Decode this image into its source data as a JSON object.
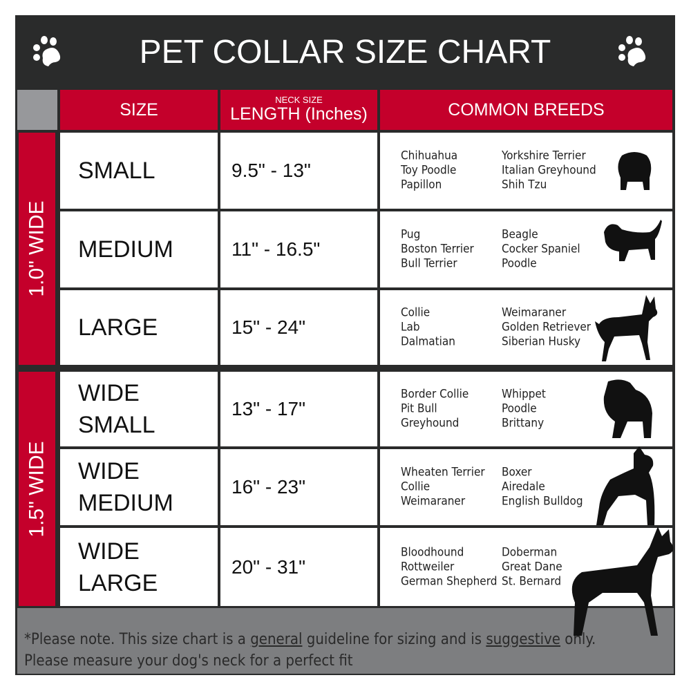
{
  "title": "PET COLLAR SIZE CHART",
  "headers": {
    "size": "SIZE",
    "length_small": "NECK SIZE",
    "length": "LENGTH (Inches)",
    "breeds": "COMMON BREEDS"
  },
  "groups": [
    {
      "label": "1.0\" WIDE"
    },
    {
      "label": "1.5\" WIDE"
    }
  ],
  "rows": [
    {
      "size": "SMALL",
      "length": "9.5\" - 13\"",
      "breeds_a": [
        "Chihuahua",
        "Toy Poodle",
        "Papillon"
      ],
      "breeds_b": [
        "Yorkshire Terrier",
        "Italian Greyhound",
        "Shih Tzu"
      ]
    },
    {
      "size": "MEDIUM",
      "length": "11\" - 16.5\"",
      "breeds_a": [
        "Pug",
        "Boston Terrier",
        "Bull Terrier"
      ],
      "breeds_b": [
        "Beagle",
        "Cocker Spaniel",
        "Poodle"
      ]
    },
    {
      "size": "LARGE",
      "length": "15\" - 24\"",
      "breeds_a": [
        "Collie",
        "Lab",
        "Dalmatian"
      ],
      "breeds_b": [
        "Weimaraner",
        "Golden Retriever",
        "Siberian Husky"
      ]
    },
    {
      "size": "WIDE SMALL",
      "length": "13\" - 17\"",
      "breeds_a": [
        "Border Collie",
        "Pit Bull",
        "Greyhound"
      ],
      "breeds_b": [
        "Whippet",
        "Poodle",
        "Brittany"
      ]
    },
    {
      "size": "WIDE MEDIUM",
      "length": "16\" - 23\"",
      "breeds_a": [
        "Wheaten Terrier",
        "Collie",
        "Weimaraner"
      ],
      "breeds_b": [
        "Boxer",
        "Airedale",
        "English Bulldog"
      ]
    },
    {
      "size": "WIDE LARGE",
      "length": "20\" - 31\"",
      "breeds_a": [
        "Bloodhound",
        "Rottweiler",
        "German Shepherd"
      ],
      "breeds_b": [
        "Doberman",
        "Great Dane",
        "St. Bernard"
      ]
    }
  ],
  "footer": {
    "p1": "*Please note. This size chart is a ",
    "u1": "general",
    "p2": " guideline for sizing and is ",
    "u2": "suggestive",
    "p3": " only.",
    "line2": "Please measure your dog's neck for a perfect fit"
  },
  "colors": {
    "red": "#c4002b",
    "dark": "#2a2b2b",
    "gray": "#7d7e80"
  },
  "icons": [
    "paw-icon",
    "dog-silhouette"
  ]
}
